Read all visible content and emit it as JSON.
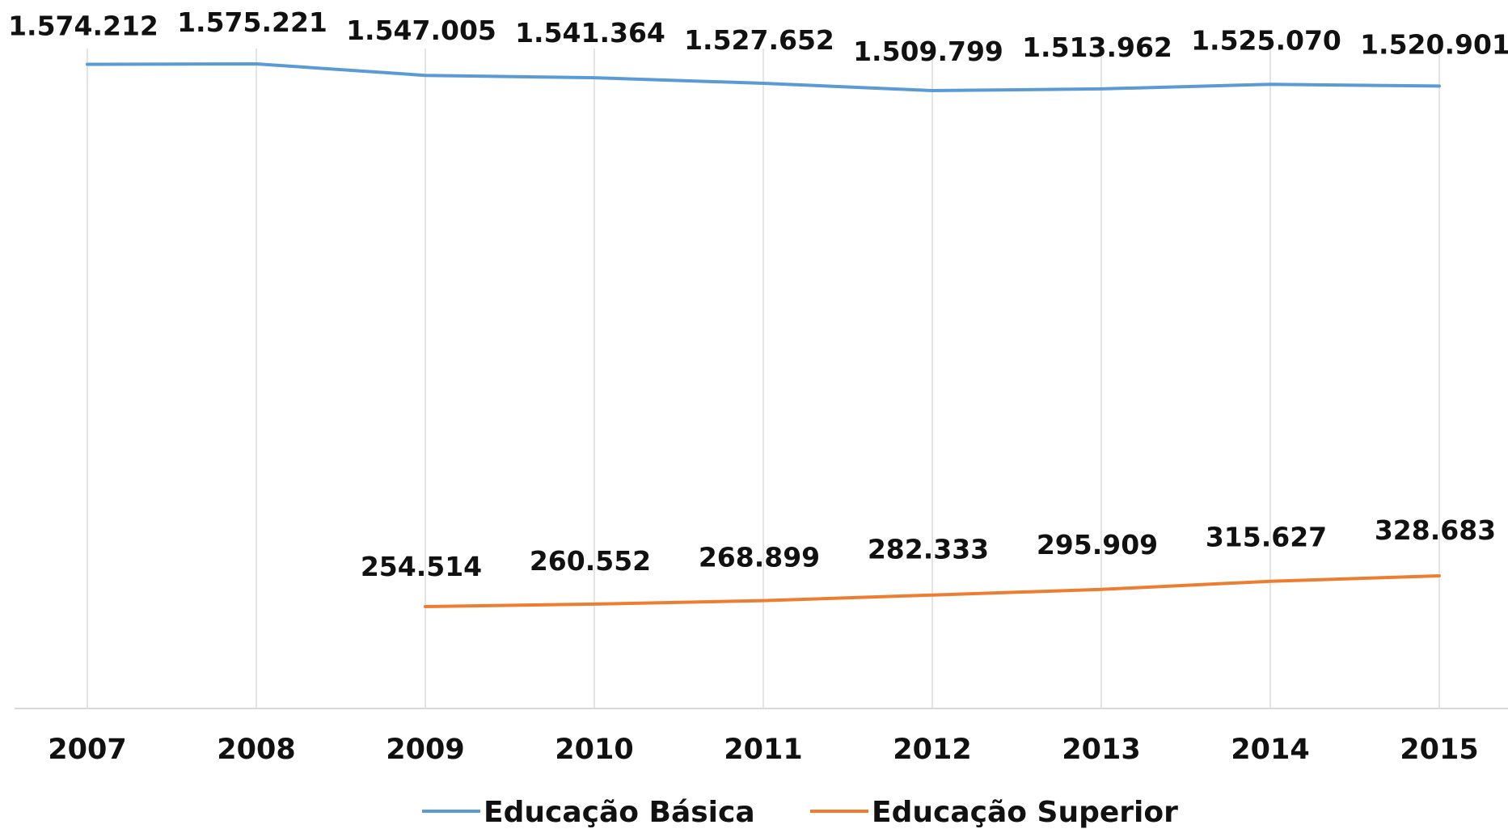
{
  "chart_data": {
    "type": "line",
    "title": "",
    "xlabel": "",
    "ylabel": "",
    "categories": [
      "2007",
      "2008",
      "2009",
      "2010",
      "2011",
      "2012",
      "2013",
      "2014",
      "2015"
    ],
    "grid": {
      "vertical": true,
      "horizontal": false
    },
    "legend_placement": "bottom-center",
    "series": [
      {
        "name": "Educação Básica",
        "color": "#5b9bd5",
        "values": [
          1574212,
          1575221,
          1547005,
          1541364,
          1527652,
          1509799,
          1513962,
          1525070,
          1520901
        ],
        "labels": [
          "1.574.212",
          "1.575.221",
          "1.547.005",
          "1.541.364",
          "1.527.652",
          "1.509.799",
          "1.513.962",
          "1.525.070",
          "1.520.901"
        ]
      },
      {
        "name": "Educação Superior",
        "color": "#ed7d31",
        "values": [
          null,
          null,
          254514,
          260552,
          268899,
          282333,
          295909,
          315627,
          328683
        ],
        "labels": [
          "",
          "",
          "254.514",
          "260.552",
          "268.899",
          "282.333",
          "295.909",
          "315.627",
          "328.683"
        ]
      }
    ]
  }
}
